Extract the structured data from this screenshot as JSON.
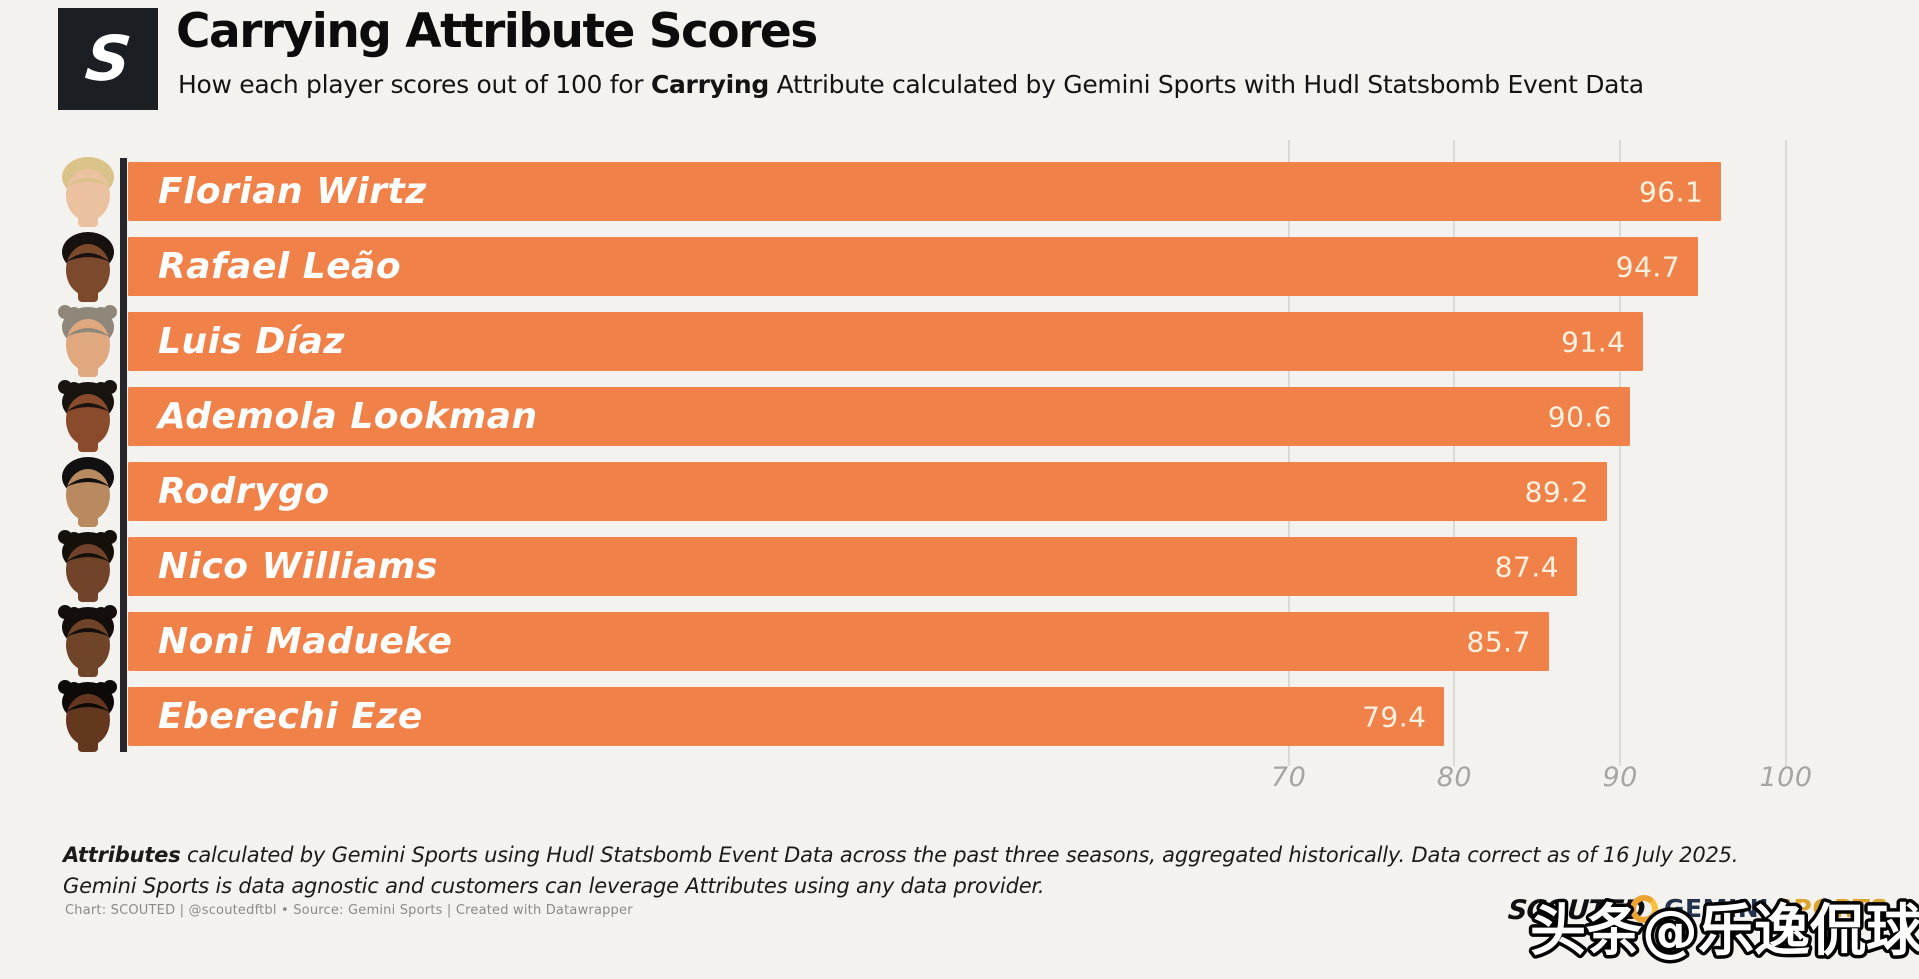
{
  "header": {
    "logo_letter": "S",
    "title": "Carrying Attribute Scores",
    "subtitle_prefix": "How each player scores out of 100 for ",
    "subtitle_bold": "Carrying",
    "subtitle_suffix": " Attribute calculated by Gemini Sports with Hudl Statsbomb Event Data"
  },
  "chart_data": {
    "type": "bar",
    "orientation": "horizontal",
    "title": "Carrying Attribute Scores",
    "categories": [
      "Florian Wirtz",
      "Rafael Leão",
      "Luis Díaz",
      "Ademola Lookman",
      "Rodrygo",
      "Nico Williams",
      "Noni Madueke",
      "Eberechi Eze"
    ],
    "values": [
      96.1,
      94.7,
      91.4,
      90.6,
      89.2,
      87.4,
      85.7,
      79.4
    ],
    "xlim": [
      0,
      100
    ],
    "ticks": [
      70,
      80,
      90,
      100
    ],
    "grid": true,
    "bar_color": "#f08249",
    "value_label_color": "#fbf1e1",
    "name_label_color": "#ffffff",
    "gridline_color": "#dbd9d4",
    "axis_line_color": "#26262b"
  },
  "players": [
    {
      "name": "Florian Wirtz",
      "value": 96.1,
      "avatar": {
        "skin": "#ecc1a0",
        "hair": "#d9c389",
        "style": "short"
      }
    },
    {
      "name": "Rafael Leão",
      "value": 94.7,
      "avatar": {
        "skin": "#7b4a2d",
        "hair": "#171210",
        "style": "short"
      }
    },
    {
      "name": "Luis Díaz",
      "value": 91.4,
      "avatar": {
        "skin": "#dfa87e",
        "hair": "#8f8779",
        "style": "curly"
      }
    },
    {
      "name": "Ademola Lookman",
      "value": 90.6,
      "avatar": {
        "skin": "#8a4a2c",
        "hair": "#1a1411",
        "style": "curly"
      }
    },
    {
      "name": "Rodrygo",
      "value": 89.2,
      "avatar": {
        "skin": "#b98a60",
        "hair": "#121010",
        "style": "short"
      }
    },
    {
      "name": "Nico Williams",
      "value": 87.4,
      "avatar": {
        "skin": "#70432a",
        "hair": "#151009",
        "style": "locs"
      }
    },
    {
      "name": "Noni Madueke",
      "value": 85.7,
      "avatar": {
        "skin": "#6f4428",
        "hair": "#140f0c",
        "style": "locs"
      }
    },
    {
      "name": "Eberechi Eze",
      "value": 79.4,
      "avatar": {
        "skin": "#63381f",
        "hair": "#0e0a07",
        "style": "locs"
      }
    }
  ],
  "footer": {
    "note_bold": "Attributes",
    "note1_rest": " calculated by Gemini Sports using Hudl Statsbomb Event Data across the past three seasons, aggregated historically. Data correct as of 16 July 2025.",
    "note2": "Gemini Sports is data agnostic and customers can leverage Attributes using any data provider.",
    "attribution": "Chart: SCOUTED | @scoutedftbl • Source: Gemini Sports | Created with Datawrapper"
  },
  "branding": {
    "scouted_wordmark": "SCOUTED",
    "gemini_word1": "GEMINI",
    "gemini_word2": "SPORTS"
  },
  "watermark": "头条@乐逸侃球"
}
